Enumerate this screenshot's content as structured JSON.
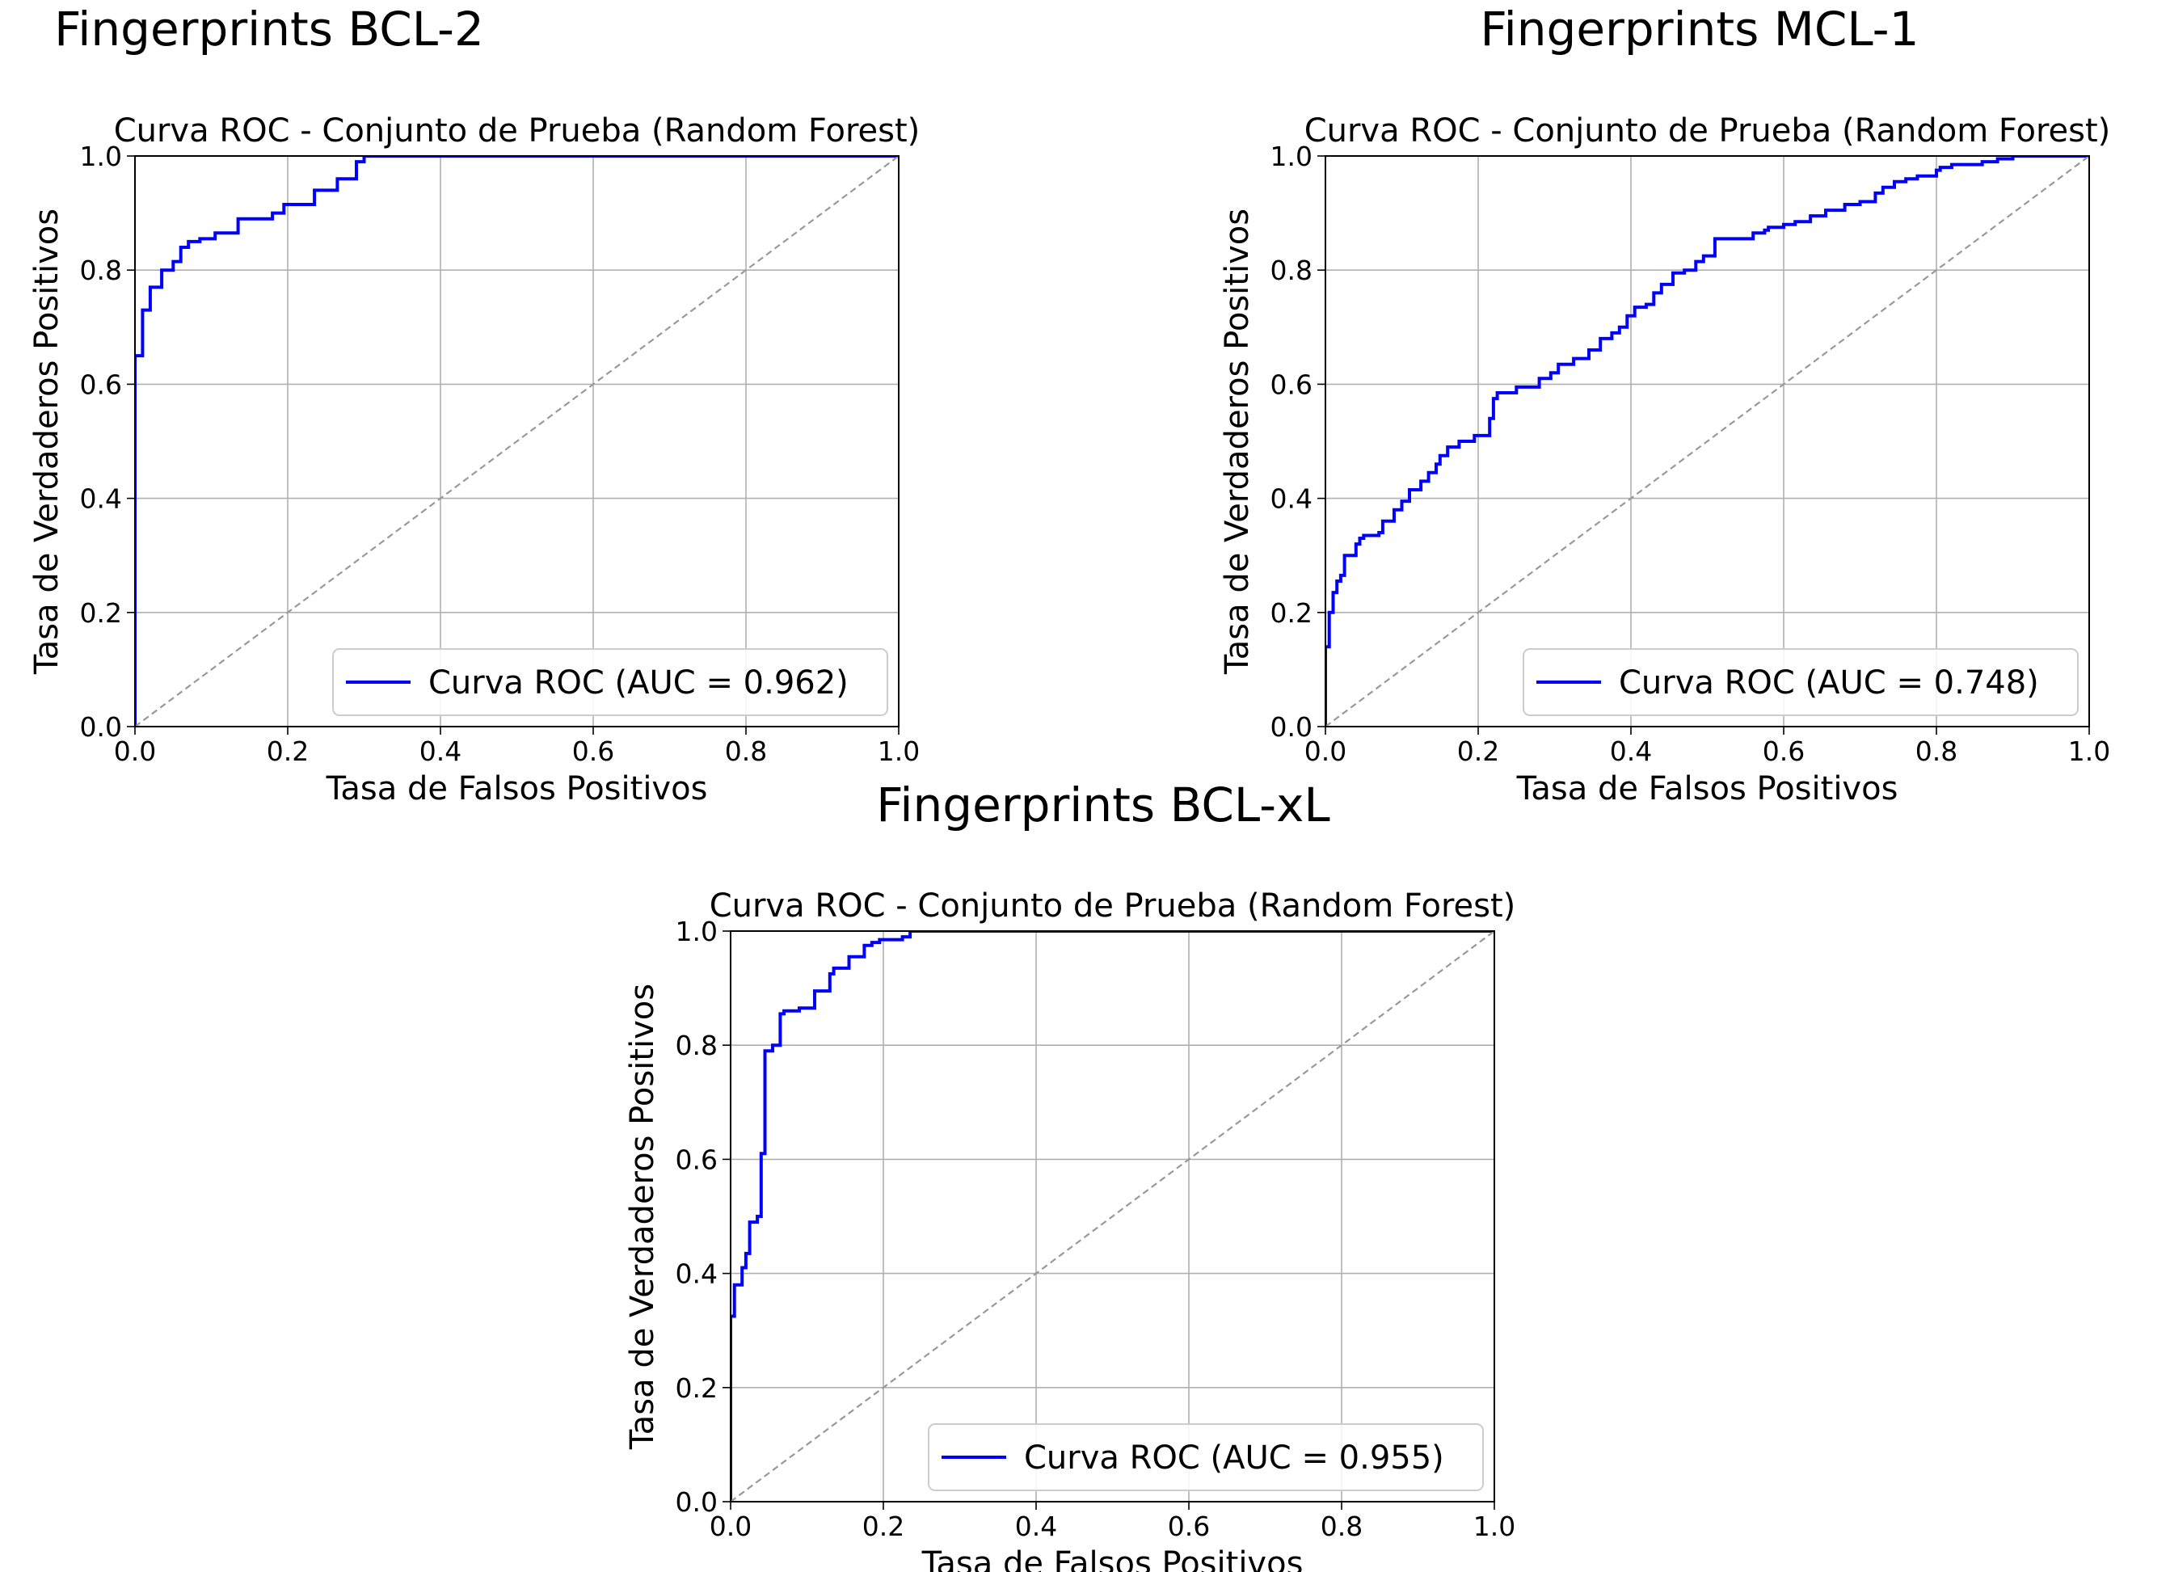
{
  "figure": {
    "panels": [
      {
        "heading": "Fingerprints BCL-2"
      },
      {
        "heading": "Fingerprints MCL-1"
      },
      {
        "heading": "Fingerprints BCL-xL"
      }
    ]
  },
  "colors": {
    "roc": "#0000ff",
    "diagonal": "#999999",
    "grid": "#b0b0b0",
    "axes": "#000000"
  },
  "chart_data": [
    {
      "type": "line",
      "title": "Curva ROC - Conjunto de Prueba (Random Forest)",
      "xlabel": "Tasa de Falsos Positivos",
      "ylabel": "Tasa de Verdaderos Positivos",
      "xlim": [
        0,
        1
      ],
      "ylim": [
        0,
        1
      ],
      "xticks": [
        "0.0",
        "0.2",
        "0.4",
        "0.6",
        "0.8",
        "1.0"
      ],
      "yticks": [
        "0.0",
        "0.2",
        "0.4",
        "0.6",
        "0.8",
        "1.0"
      ],
      "grid": true,
      "legend_position": "lower right",
      "series": [
        {
          "name": "Curva ROC (AUC = 0.962)",
          "style": "solid-step",
          "x": [
            0,
            0,
            0.01,
            0.01,
            0.02,
            0.02,
            0.035,
            0.035,
            0.05,
            0.05,
            0.06,
            0.06,
            0.07,
            0.07,
            0.085,
            0.085,
            0.105,
            0.105,
            0.135,
            0.135,
            0.18,
            0.18,
            0.195,
            0.195,
            0.235,
            0.235,
            0.265,
            0.265,
            0.29,
            0.29,
            0.3,
            0.3,
            1.0
          ],
          "y": [
            0,
            0.65,
            0.65,
            0.73,
            0.73,
            0.77,
            0.77,
            0.8,
            0.8,
            0.815,
            0.815,
            0.84,
            0.84,
            0.85,
            0.85,
            0.855,
            0.855,
            0.865,
            0.865,
            0.89,
            0.89,
            0.9,
            0.9,
            0.915,
            0.915,
            0.94,
            0.94,
            0.96,
            0.96,
            0.99,
            0.99,
            1.0,
            1.0
          ]
        },
        {
          "name": "",
          "style": "dashed",
          "x": [
            0,
            1
          ],
          "y": [
            0,
            1
          ]
        }
      ]
    },
    {
      "type": "line",
      "title": "Curva ROC - Conjunto de Prueba (Random Forest)",
      "xlabel": "Tasa de Falsos Positivos",
      "ylabel": "Tasa de Verdaderos Positivos",
      "xlim": [
        0,
        1
      ],
      "ylim": [
        0,
        1
      ],
      "xticks": [
        "0.0",
        "0.2",
        "0.4",
        "0.6",
        "0.8",
        "1.0"
      ],
      "yticks": [
        "0.0",
        "0.2",
        "0.4",
        "0.6",
        "0.8",
        "1.0"
      ],
      "grid": true,
      "legend_position": "lower right",
      "series": [
        {
          "name": "Curva ROC (AUC = 0.748)",
          "style": "solid-step",
          "x": [
            0,
            0,
            0.005,
            0.005,
            0.01,
            0.01,
            0.015,
            0.015,
            0.02,
            0.02,
            0.025,
            0.025,
            0.04,
            0.04,
            0.045,
            0.045,
            0.05,
            0.05,
            0.07,
            0.07,
            0.075,
            0.075,
            0.09,
            0.09,
            0.1,
            0.1,
            0.11,
            0.11,
            0.125,
            0.125,
            0.135,
            0.135,
            0.145,
            0.145,
            0.15,
            0.15,
            0.16,
            0.16,
            0.175,
            0.175,
            0.195,
            0.195,
            0.215,
            0.215,
            0.22,
            0.22,
            0.225,
            0.225,
            0.25,
            0.25,
            0.28,
            0.28,
            0.295,
            0.295,
            0.305,
            0.305,
            0.325,
            0.325,
            0.345,
            0.345,
            0.36,
            0.36,
            0.375,
            0.375,
            0.385,
            0.385,
            0.395,
            0.395,
            0.405,
            0.405,
            0.42,
            0.42,
            0.43,
            0.43,
            0.44,
            0.44,
            0.455,
            0.455,
            0.47,
            0.47,
            0.485,
            0.485,
            0.495,
            0.495,
            0.51,
            0.51,
            0.56,
            0.56,
            0.575,
            0.575,
            0.58,
            0.58,
            0.6,
            0.6,
            0.615,
            0.615,
            0.635,
            0.635,
            0.655,
            0.655,
            0.68,
            0.68,
            0.7,
            0.7,
            0.72,
            0.72,
            0.73,
            0.73,
            0.745,
            0.745,
            0.76,
            0.76,
            0.775,
            0.775,
            0.8,
            0.8,
            0.805,
            0.805,
            0.82,
            0.82,
            0.86,
            0.86,
            0.88,
            0.88,
            0.9,
            0.9,
            1.0
          ],
          "y": [
            0,
            0.14,
            0.14,
            0.2,
            0.2,
            0.235,
            0.235,
            0.255,
            0.255,
            0.265,
            0.265,
            0.3,
            0.3,
            0.32,
            0.32,
            0.33,
            0.33,
            0.335,
            0.335,
            0.34,
            0.34,
            0.36,
            0.36,
            0.38,
            0.38,
            0.395,
            0.395,
            0.415,
            0.415,
            0.43,
            0.43,
            0.445,
            0.445,
            0.46,
            0.46,
            0.475,
            0.475,
            0.49,
            0.49,
            0.5,
            0.5,
            0.51,
            0.51,
            0.54,
            0.54,
            0.575,
            0.575,
            0.585,
            0.585,
            0.595,
            0.595,
            0.61,
            0.61,
            0.62,
            0.62,
            0.635,
            0.635,
            0.645,
            0.645,
            0.66,
            0.66,
            0.68,
            0.68,
            0.69,
            0.69,
            0.7,
            0.7,
            0.72,
            0.72,
            0.735,
            0.735,
            0.74,
            0.74,
            0.76,
            0.76,
            0.775,
            0.775,
            0.795,
            0.795,
            0.8,
            0.8,
            0.815,
            0.815,
            0.825,
            0.825,
            0.855,
            0.855,
            0.865,
            0.865,
            0.87,
            0.87,
            0.875,
            0.875,
            0.88,
            0.88,
            0.885,
            0.885,
            0.895,
            0.895,
            0.905,
            0.905,
            0.915,
            0.915,
            0.92,
            0.92,
            0.935,
            0.935,
            0.945,
            0.945,
            0.955,
            0.955,
            0.96,
            0.96,
            0.965,
            0.965,
            0.975,
            0.975,
            0.98,
            0.98,
            0.985,
            0.985,
            0.99,
            0.99,
            0.995,
            0.995,
            1.0,
            1.0
          ]
        },
        {
          "name": "",
          "style": "dashed",
          "x": [
            0,
            1
          ],
          "y": [
            0,
            1
          ]
        }
      ]
    },
    {
      "type": "line",
      "title": "Curva ROC - Conjunto de Prueba (Random Forest)",
      "xlabel": "Tasa de Falsos Positivos",
      "ylabel": "Tasa de Verdaderos Positivos",
      "xlim": [
        0,
        1
      ],
      "ylim": [
        0,
        1
      ],
      "xticks": [
        "0.0",
        "0.2",
        "0.4",
        "0.6",
        "0.8",
        "1.0"
      ],
      "yticks": [
        "0.0",
        "0.2",
        "0.4",
        "0.6",
        "0.8",
        "1.0"
      ],
      "grid": true,
      "legend_position": "lower right",
      "series": [
        {
          "name": "Curva ROC (AUC = 0.955)",
          "style": "solid-step",
          "x": [
            0,
            0,
            0.005,
            0.005,
            0.015,
            0.015,
            0.02,
            0.02,
            0.025,
            0.025,
            0.035,
            0.035,
            0.04,
            0.04,
            0.045,
            0.045,
            0.055,
            0.055,
            0.065,
            0.065,
            0.07,
            0.07,
            0.09,
            0.09,
            0.11,
            0.11,
            0.13,
            0.13,
            0.135,
            0.135,
            0.155,
            0.155,
            0.175,
            0.175,
            0.185,
            0.185,
            0.195,
            0.195,
            0.225,
            0.225,
            0.235,
            0.235,
            1.0
          ],
          "y": [
            0,
            0.325,
            0.325,
            0.38,
            0.38,
            0.41,
            0.41,
            0.435,
            0.435,
            0.49,
            0.49,
            0.5,
            0.5,
            0.61,
            0.61,
            0.79,
            0.79,
            0.8,
            0.8,
            0.855,
            0.855,
            0.86,
            0.86,
            0.865,
            0.865,
            0.895,
            0.895,
            0.925,
            0.925,
            0.935,
            0.935,
            0.955,
            0.955,
            0.975,
            0.975,
            0.98,
            0.98,
            0.985,
            0.985,
            0.99,
            0.99,
            1.0,
            1.0
          ]
        },
        {
          "name": "",
          "style": "dashed",
          "x": [
            0,
            1
          ],
          "y": [
            0,
            1
          ]
        }
      ]
    }
  ]
}
